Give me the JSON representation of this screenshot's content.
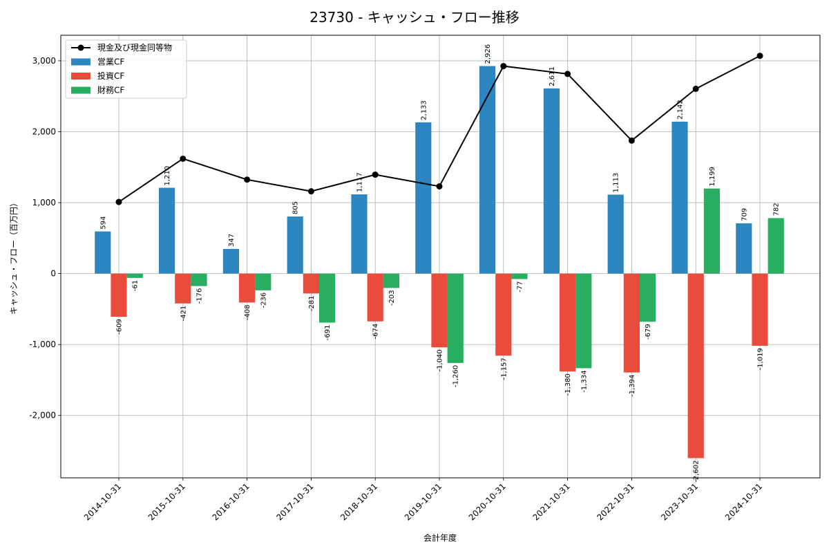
{
  "chart_data": {
    "type": "bar",
    "title": "23730 - キャッシュ・フロー推移",
    "xlabel": "会計年度",
    "ylabel": "キャッシュ・フロー（百万円）",
    "categories": [
      "2014-10-31",
      "2015-10-31",
      "2016-10-31",
      "2017-10-31",
      "2018-10-31",
      "2019-10-31",
      "2020-10-31",
      "2021-10-31",
      "2022-10-31",
      "2023-10-31",
      "2024-10-31"
    ],
    "ylim": [
      -2880,
      3360
    ],
    "yticks": [
      -2000,
      -1000,
      0,
      1000,
      2000,
      3000
    ],
    "ytick_labels": [
      "-2,000",
      "-1,000",
      "0",
      "1,000",
      "2,000",
      "3,000"
    ],
    "grid": true,
    "legend_position": "top-left",
    "series": [
      {
        "name": "営業CF",
        "kind": "bar",
        "color": "#2e86c1",
        "values": [
          594,
          1210,
          347,
          805,
          1117,
          2133,
          2926,
          2611,
          1113,
          2142,
          709
        ],
        "labels": [
          "594",
          "1,210",
          "347",
          "805",
          "1,117",
          "2,133",
          "2,926",
          "2,611",
          "1,113",
          "2,142",
          "709"
        ]
      },
      {
        "name": "投資CF",
        "kind": "bar",
        "color": "#e74c3c",
        "values": [
          -609,
          -421,
          -408,
          -281,
          -674,
          -1040,
          -1157,
          -1380,
          -1394,
          -2602,
          -1019
        ],
        "labels": [
          "-609",
          "-421",
          "-408",
          "-281",
          "-674",
          "-1,040",
          "-1,157",
          "-1,380",
          "-1,394",
          "-2,602",
          "-1,019"
        ]
      },
      {
        "name": "財務CF",
        "kind": "bar",
        "color": "#27ae60",
        "values": [
          -61,
          -176,
          -236,
          -691,
          -203,
          -1260,
          -77,
          -1334,
          -679,
          1199,
          782
        ],
        "labels": [
          "-61",
          "-176",
          "-236",
          "-691",
          "-203",
          "-1,260",
          "-77",
          "-1,334",
          "-679",
          "1,199",
          "782"
        ]
      },
      {
        "name": "現金及び現金同等物",
        "kind": "line",
        "color": "#000000",
        "values": [
          1010,
          1620,
          1325,
          1160,
          1395,
          1230,
          2925,
          2815,
          1875,
          2605,
          3070
        ]
      }
    ],
    "legend_order": [
      3,
      0,
      1,
      2
    ]
  }
}
